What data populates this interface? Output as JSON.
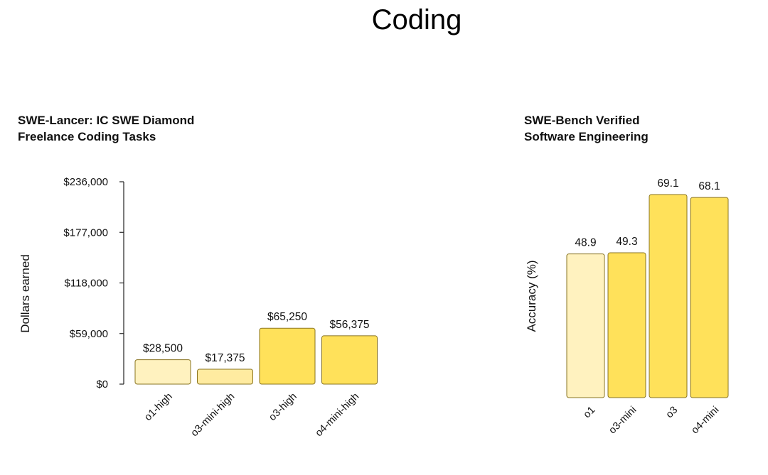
{
  "page": {
    "title": "Coding"
  },
  "chart_data": [
    {
      "type": "bar",
      "title_lines": [
        "SWE-Lancer: IC SWE Diamond",
        "Freelance Coding Tasks"
      ],
      "ylabel": "Dollars earned",
      "xlabel": "",
      "categories": [
        "o1-high",
        "o3-mini-high",
        "o3-high",
        "o4-mini-high"
      ],
      "values": [
        28500,
        17375,
        65250,
        56375
      ],
      "value_labels": [
        "$28,500",
        "$17,375",
        "$65,250",
        "$56,375"
      ],
      "ylim": [
        0,
        236000
      ],
      "yticks": [
        0,
        59000,
        118000,
        177000,
        236000
      ],
      "ytick_labels": [
        "$0",
        "$59,000",
        "$118,000",
        "$177,000",
        "$236,000"
      ],
      "colors": [
        "#FFF2BF",
        "#FFEBA0",
        "#FFE15A",
        "#FFE15A"
      ],
      "grid": false
    },
    {
      "type": "bar",
      "title_lines": [
        "SWE-Bench Verified",
        "Software Engineering"
      ],
      "ylabel": "Accuracy (%)",
      "xlabel": "",
      "categories": [
        "o1",
        "o3-mini",
        "o3",
        "o4-mini"
      ],
      "values": [
        48.9,
        49.3,
        69.1,
        68.1
      ],
      "value_labels": [
        "48.9",
        "49.3",
        "69.1",
        "68.1"
      ],
      "ylim": [
        0,
        69.1
      ],
      "colors": [
        "#FFF2BF",
        "#FFE15A",
        "#FFE15A",
        "#FFE15A"
      ],
      "grid": false
    }
  ],
  "style": {
    "bar_stroke": "#8A7420",
    "text_color": "#111111"
  }
}
